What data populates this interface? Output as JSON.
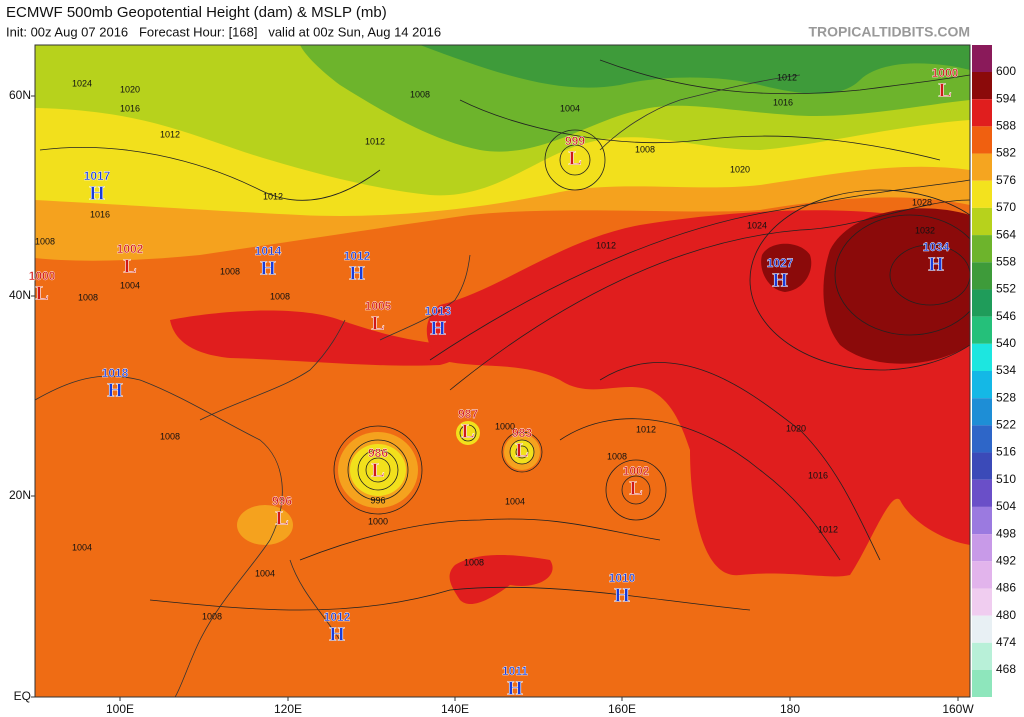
{
  "header": {
    "title": "ECMWF 500mb Geopotential Height (dam) & MSLP (mb)",
    "subtitle": "Init: 00z Aug 07 2016   Forecast Hour: [168]   valid at 00z Sun, Aug 14 2016",
    "source": "TROPICALTIDBITS.COM"
  },
  "axes": {
    "lat_labels": [
      "60N",
      "40N",
      "20N",
      "EQ"
    ],
    "lon_labels": [
      "100E",
      "120E",
      "140E",
      "160E",
      "180",
      "160W"
    ]
  },
  "colorbar": {
    "labels": [
      "600",
      "594",
      "588",
      "582",
      "576",
      "570",
      "564",
      "558",
      "552",
      "546",
      "540",
      "534",
      "528",
      "522",
      "516",
      "510",
      "504",
      "498",
      "492",
      "486",
      "480",
      "474",
      "468"
    ]
  },
  "centers": [
    {
      "type": "L",
      "pressure": "1000"
    },
    {
      "type": "L",
      "pressure": "999"
    },
    {
      "type": "H",
      "pressure": "1017"
    },
    {
      "type": "H",
      "pressure": "1014"
    },
    {
      "type": "H",
      "pressure": "1012"
    },
    {
      "type": "L",
      "pressure": "1000"
    },
    {
      "type": "L",
      "pressure": "1002"
    },
    {
      "type": "L",
      "pressure": "1005"
    },
    {
      "type": "H",
      "pressure": "1013"
    },
    {
      "type": "H",
      "pressure": "1027"
    },
    {
      "type": "H",
      "pressure": "1034"
    },
    {
      "type": "H",
      "pressure": "1018"
    },
    {
      "type": "L",
      "pressure": "987"
    },
    {
      "type": "L",
      "pressure": "983"
    },
    {
      "type": "L",
      "pressure": "986"
    },
    {
      "type": "L",
      "pressure": "1002"
    },
    {
      "type": "L",
      "pressure": "996"
    },
    {
      "type": "H",
      "pressure": "1010"
    },
    {
      "type": "H",
      "pressure": "1012"
    },
    {
      "type": "H",
      "pressure": "1011"
    }
  ],
  "isobar_labels": [
    "1024",
    "1020",
    "1016",
    "1012",
    "1008",
    "1004",
    "1012",
    "1016",
    "1008",
    "1012",
    "1020",
    "1024",
    "1012",
    "1012",
    "1028",
    "1032",
    "1016",
    "1008",
    "1008",
    "1004",
    "1008",
    "1008",
    "1020",
    "1016",
    "1012",
    "1012",
    "1008",
    "1000",
    "1004",
    "996",
    "1000",
    "1008",
    "1004",
    "1004",
    "1008",
    "1008"
  ]
}
